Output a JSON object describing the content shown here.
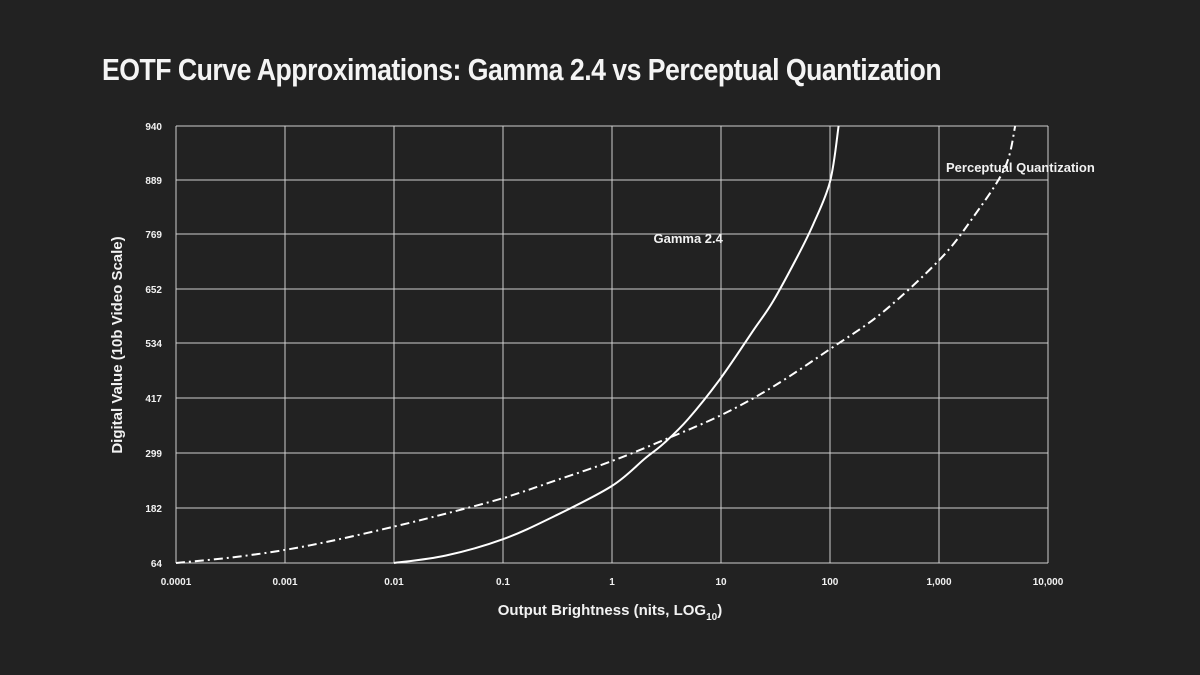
{
  "colors": {
    "background": "#222222",
    "grid": "#cfcfcf",
    "curve": "#ffffff",
    "text": "#f2f2f2"
  },
  "chart_data": {
    "type": "line",
    "title": "EOTF Curve Approximations: Gamma 2.4 vs Perceptual Quantization",
    "xlabel": "Output Brightness (nits, LOG",
    "xlabel_subscript": "10",
    "xlabel_suffix": ")",
    "ylabel": "Digital Value (10b Video Scale)",
    "x_scale": "log10",
    "xlim": [
      0.0001,
      10000
    ],
    "ylim": [
      64,
      940
    ],
    "x_ticks": [
      0.0001,
      0.001,
      0.01,
      0.1,
      1,
      10,
      100,
      1000,
      10000
    ],
    "x_tick_labels": [
      "0.0001",
      "0.001",
      "0.01",
      "0.1",
      "1",
      "10",
      "100",
      "1,000",
      "10,000"
    ],
    "y_ticks": [
      64,
      182,
      299,
      417,
      534,
      652,
      769,
      889,
      940
    ],
    "y_tick_labels": [
      "64",
      "182",
      "299",
      "417",
      "534",
      "652",
      "769",
      "889",
      "940"
    ],
    "grid": true,
    "series": [
      {
        "name": "Gamma 2.4",
        "style": "solid",
        "x": [
          0.01,
          0.03,
          0.1,
          0.3,
          1,
          2,
          3,
          5,
          10,
          20,
          30,
          50,
          70,
          100,
          120
        ],
        "y": [
          64,
          80,
          115,
          165,
          229,
          287,
          320,
          372,
          460,
          563,
          625,
          720,
          790,
          885,
          940
        ]
      },
      {
        "name": "Perceptual Quantization",
        "style": "dashdot",
        "x": [
          0.0001,
          0.0003,
          0.001,
          0.003,
          0.01,
          0.03,
          0.1,
          0.3,
          1,
          3,
          10,
          30,
          100,
          300,
          1000,
          2000,
          4000,
          5000
        ],
        "y": [
          64,
          75,
          92,
          114,
          142,
          170,
          203,
          240,
          282,
          327,
          380,
          441,
          521,
          600,
          713,
          802,
          900,
          940
        ]
      }
    ]
  }
}
